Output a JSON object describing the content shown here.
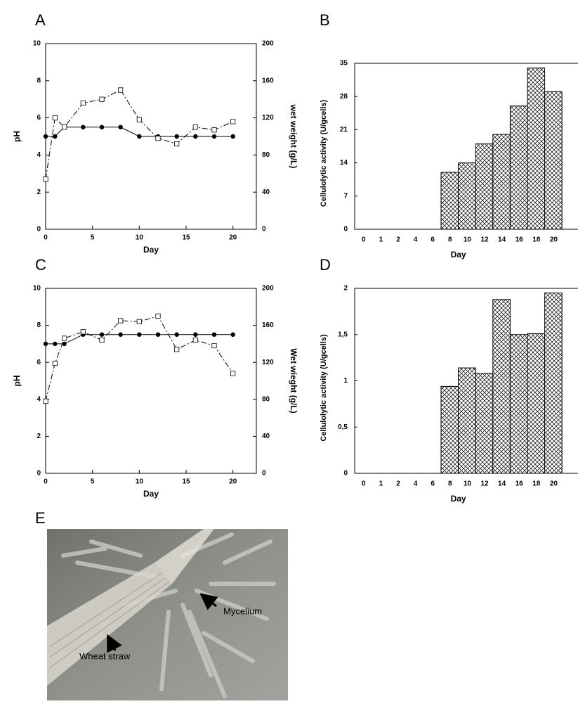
{
  "chart_data": [
    {
      "type": "line",
      "panel_label": "A",
      "x": [
        0,
        1,
        2,
        4,
        6,
        8,
        10,
        12,
        14,
        16,
        18,
        20
      ],
      "series": [
        {
          "values": [
            5,
            5,
            5.5,
            5.5,
            5.5,
            5.5,
            5,
            5,
            5,
            5,
            5,
            5
          ],
          "color": "#000000",
          "marker": "circle",
          "linestyle": "solid"
        },
        {
          "values": [
            54,
            120,
            110,
            136,
            140,
            150,
            118,
            98,
            92,
            110,
            107,
            116
          ],
          "color": "#000000",
          "marker": "open-square",
          "linestyle": "dashed",
          "axis": "y2"
        }
      ],
      "xlim": [
        0,
        22.5
      ],
      "xticks": [
        0,
        5,
        10,
        15,
        20
      ],
      "ylim": [
        0,
        10
      ],
      "yticks": [
        0,
        2,
        4,
        6,
        8,
        10
      ],
      "y2lim": [
        0,
        200
      ],
      "y2ticks": [
        0,
        40,
        80,
        120,
        160,
        200
      ],
      "x_label": "Day",
      "y_label": "pH",
      "y2_label": "wet weight (g/L)"
    },
    {
      "type": "bar",
      "panel_label": "B",
      "categories": [
        "0",
        "1",
        "2",
        "4",
        "6",
        "8",
        "10",
        "12",
        "14",
        "16",
        "18",
        "20"
      ],
      "values": [
        null,
        null,
        null,
        null,
        null,
        12,
        14,
        18,
        20,
        26,
        34,
        29
      ],
      "ylim": [
        0,
        35
      ],
      "yticks": [
        0,
        7,
        14,
        21,
        28,
        35
      ],
      "fill": "crosshatch",
      "x_label": "Day",
      "y_label": "Cellulolytic activity  (U/gcells)"
    },
    {
      "type": "line",
      "panel_label": "C",
      "x": [
        0,
        1,
        2,
        4,
        6,
        8,
        10,
        12,
        14,
        16,
        18,
        20
      ],
      "series": [
        {
          "values": [
            7,
            7,
            7,
            7.5,
            7.5,
            7.5,
            7.5,
            7.5,
            7.5,
            7.5,
            7.5,
            7.5
          ],
          "color": "#000000",
          "marker": "circle",
          "linestyle": "solid"
        },
        {
          "values": [
            78,
            119,
            146,
            153,
            144,
            165,
            164,
            170,
            134,
            144,
            138,
            108
          ],
          "color": "#000000",
          "marker": "open-square",
          "linestyle": "dashed",
          "axis": "y2"
        }
      ],
      "xlim": [
        0,
        22.5
      ],
      "xticks": [
        0,
        5,
        10,
        15,
        20
      ],
      "ylim": [
        0,
        10
      ],
      "yticks": [
        0,
        2,
        4,
        6,
        8,
        10
      ],
      "y2lim": [
        0,
        200
      ],
      "y2ticks": [
        0,
        40,
        80,
        120,
        160,
        200
      ],
      "x_label": "Day",
      "y_label": "pH",
      "y2_label": "Wet wieght (g/L)"
    },
    {
      "type": "bar",
      "panel_label": "D",
      "categories": [
        "0",
        "1",
        "2",
        "4",
        "6",
        "8",
        "10",
        "12",
        "14",
        "16",
        "18",
        "20"
      ],
      "values": [
        null,
        null,
        null,
        null,
        null,
        0.94,
        1.14,
        1.08,
        1.88,
        1.5,
        1.51,
        1.95
      ],
      "ylim": [
        0,
        2
      ],
      "yticks": [
        0,
        {
          "value": 0.5,
          "label": "0,5"
        },
        1,
        {
          "value": 1.5,
          "label": "1,5"
        },
        2
      ],
      "fill": "crosshatch",
      "x_label": "Day",
      "y_label": "Cellulolytic activity (U/gcells)"
    }
  ],
  "image": {
    "panel_label": "E",
    "annotations": [
      "Mycelium",
      "Wheat straw"
    ]
  }
}
